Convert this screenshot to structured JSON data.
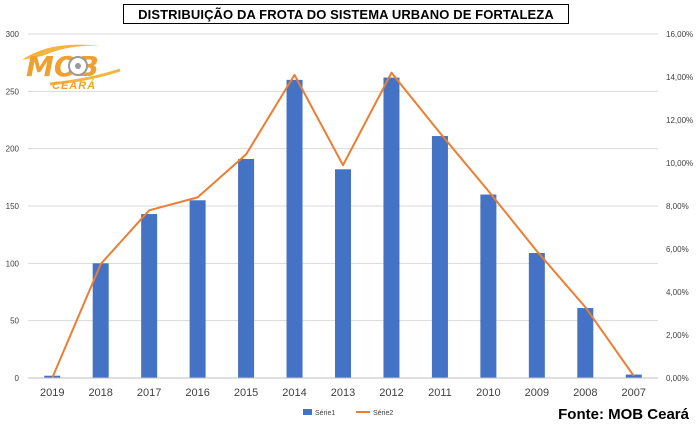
{
  "chart_data": {
    "type": "bar+line",
    "title": "DISTRIBUIÇÃO DA FROTA DO SISTEMA URBANO DE FORTALEZA",
    "categories": [
      "2019",
      "2018",
      "2017",
      "2016",
      "2015",
      "2014",
      "2013",
      "2012",
      "2011",
      "2010",
      "2009",
      "2008",
      "2007"
    ],
    "series": [
      {
        "name": "Série1",
        "type": "bar",
        "axis": "left",
        "color": "#4472C4",
        "values": [
          2,
          100,
          143,
          155,
          191,
          260,
          182,
          262,
          211,
          160,
          109,
          61,
          3
        ]
      },
      {
        "name": "Série2",
        "type": "line",
        "axis": "right",
        "color": "#ED7D31",
        "values": [
          0.0,
          5.3,
          7.8,
          8.4,
          10.4,
          14.1,
          9.9,
          14.2,
          11.4,
          8.7,
          5.9,
          3.3,
          0.1
        ]
      }
    ],
    "y_left": {
      "min": 0,
      "max": 300,
      "ticks": [
        "0",
        "50",
        "100",
        "150",
        "200",
        "250",
        "300"
      ]
    },
    "y_right": {
      "min": 0,
      "max": 16,
      "ticks": [
        "0,00%",
        "2,00%",
        "4,00%",
        "6,00%",
        "8,00%",
        "10,00%",
        "12,00%",
        "14,00%",
        "16,00%"
      ]
    },
    "grid": true,
    "legend_position": "bottom"
  },
  "logo": {
    "text": "MOB",
    "subtext": "CEARÁ"
  },
  "source": "Fonte: MOB Ceará"
}
